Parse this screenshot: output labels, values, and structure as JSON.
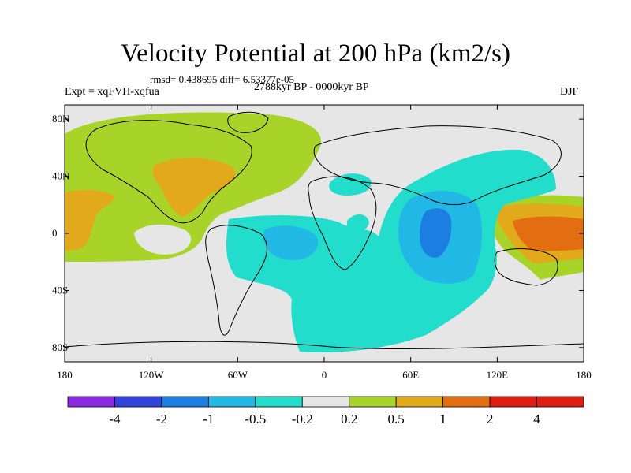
{
  "title": "Velocity Potential at 200 hPa (km2/s)",
  "stats": "rmsd= 0.438695 diff= 6.53377e-05",
  "experiment": "Expt = xqFVH-xqfua",
  "period": "2788kyr BP - 0000kyr BP",
  "season": "DJF",
  "axes": {
    "lat_ticks": [
      {
        "value": 80,
        "label": "80N"
      },
      {
        "value": 40,
        "label": "40N"
      },
      {
        "value": 0,
        "label": "0"
      },
      {
        "value": -40,
        "label": "40S"
      },
      {
        "value": -80,
        "label": "80S"
      }
    ],
    "lon_ticks": [
      {
        "value": -180,
        "label": "180"
      },
      {
        "value": -120,
        "label": "120W"
      },
      {
        "value": -60,
        "label": "60W"
      },
      {
        "value": 0,
        "label": "0"
      },
      {
        "value": 60,
        "label": "60E"
      },
      {
        "value": 120,
        "label": "120E"
      },
      {
        "value": 180,
        "label": "180"
      }
    ]
  },
  "colorbar": {
    "levels": [
      "-4",
      "-2",
      "-1",
      "-0.5",
      "-0.2",
      "0.2",
      "0.5",
      "1",
      "2",
      "4"
    ],
    "colors": [
      "#8a2be2",
      "#3344dd",
      "#1b7ee0",
      "#22b8e6",
      "#22dccc",
      "#e6e6e6",
      "#a8d42a",
      "#e2aa1a",
      "#e36e12",
      "#e11d12",
      "#e11d12"
    ]
  },
  "field_colors": {
    "land": "#e6e6e6",
    "pos_weak": "#a8d42a",
    "pos_mod": "#e2aa1a",
    "pos_strong": "#e36e12",
    "neg_weak": "#22dccc",
    "neg_mod": "#22b8e6",
    "neg_strong": "#1b7ee0"
  }
}
